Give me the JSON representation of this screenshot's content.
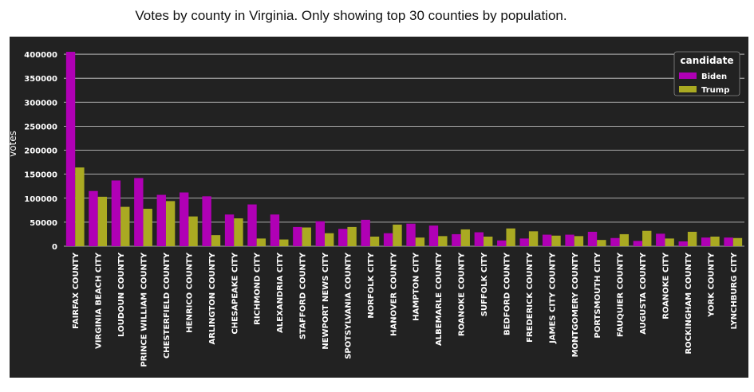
{
  "title": "Votes by county in Virginia.  Only showing top 30 counties by population.",
  "chart_data": {
    "type": "bar",
    "ylabel": "votes",
    "xlabel": "",
    "ylim": [
      0,
      420000
    ],
    "yticks": [
      0,
      50000,
      100000,
      150000,
      200000,
      250000,
      300000,
      350000,
      400000
    ],
    "grid": "horizontal",
    "legend_position": "top-right",
    "legend_title": "candidate",
    "colors": {
      "Biden": "#b000b5",
      "Trump": "#aaaa22"
    },
    "categories": [
      "FAIRFAX COUNTY",
      "VIRGINIA BEACH CITY",
      "LOUDOUN COUNTY",
      "PRINCE WILLIAM COUNTY",
      "CHESTERFIELD COUNTY",
      "HENRICO COUNTY",
      "ARLINGTON COUNTY",
      "CHESAPEAKE CITY",
      "RICHMOND CITY",
      "ALEXANDRIA CITY",
      "STAFFORD COUNTY",
      "NEWPORT NEWS CITY",
      "SPOTSYLVANIA COUNTY",
      "NORFOLK CITY",
      "HANOVER COUNTY",
      "HAMPTON CITY",
      "ALBEMARLE COUNTY",
      "ROANOKE COUNTY",
      "SUFFOLK CITY",
      "BEDFORD COUNTY",
      "FREDERICK COUNTY",
      "JAMES CITY COUNTY",
      "MONTGOMERY COUNTY",
      "PORTSMOUTH CITY",
      "FAUQUIER COUNTY",
      "AUGUSTA COUNTY",
      "ROANOKE CITY",
      "ROCKINGHAM COUNTY",
      "YORK COUNTY",
      "LYNCHBURG CITY"
    ],
    "series": [
      {
        "name": "Biden",
        "values": [
          405000,
          115000,
          137000,
          142000,
          107000,
          112000,
          104000,
          66000,
          87000,
          66000,
          40000,
          52000,
          36000,
          55000,
          27000,
          47000,
          43000,
          25000,
          29000,
          12000,
          16000,
          24000,
          24000,
          30000,
          17000,
          11000,
          26000,
          10000,
          18000,
          18000
        ]
      },
      {
        "name": "Trump",
        "values": [
          164000,
          103000,
          82000,
          78000,
          94000,
          62000,
          23000,
          58000,
          16000,
          14000,
          39000,
          27000,
          40000,
          20000,
          45000,
          18000,
          21000,
          35000,
          20000,
          37000,
          31000,
          22000,
          21000,
          13000,
          25000,
          32000,
          16000,
          30000,
          20000,
          17000
        ]
      }
    ]
  }
}
